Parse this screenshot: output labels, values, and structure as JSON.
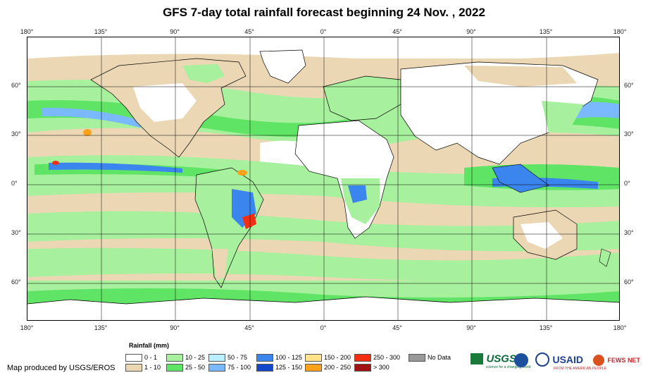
{
  "title": "GFS 7-day total rainfall forecast beginning 24 Nov. , 2022",
  "lon_ticks": [
    "180°",
    "135°",
    "90°",
    "45°",
    "0°",
    "45°",
    "90°",
    "135°",
    "180°"
  ],
  "lat_ticks": [
    "60°",
    "30°",
    "0°",
    "30°",
    "60°"
  ],
  "legend": {
    "title": "Rainfall (mm)",
    "items": [
      {
        "label": "0 - 1",
        "color": "#ffffff"
      },
      {
        "label": "1 - 10",
        "color": "#ecd7b4"
      },
      {
        "label": "10 - 25",
        "color": "#a7f09d"
      },
      {
        "label": "25 - 50",
        "color": "#60e465"
      },
      {
        "label": "50 - 75",
        "color": "#b9efff"
      },
      {
        "label": "75 - 100",
        "color": "#7ab8ff"
      },
      {
        "label": "100 - 125",
        "color": "#3b86ee"
      },
      {
        "label": "125 - 150",
        "color": "#1447c9"
      },
      {
        "label": "150 - 200",
        "color": "#ffe38b"
      },
      {
        "label": "200 - 250",
        "color": "#ffa11a"
      },
      {
        "label": "250 - 300",
        "color": "#f42e12"
      },
      {
        "label": "> 300",
        "color": "#a11212"
      },
      {
        "label": "No Data",
        "color": "#999999"
      }
    ]
  },
  "credit": "Map produced by USGS/EROS",
  "logos": {
    "usgs": "USGS",
    "usgs_tagline": "science for a changing world",
    "usaid": "USAID",
    "usaid_tagline": "FROM THE AMERICAN PEOPLE",
    "fews": "FEWS NET"
  }
}
